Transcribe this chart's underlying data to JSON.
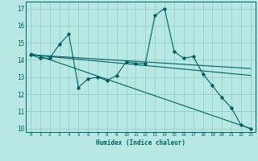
{
  "xlabel": "Humidex (Indice chaleur)",
  "xlim": [
    -0.5,
    23.5
  ],
  "ylim": [
    9.8,
    17.4
  ],
  "yticks": [
    10,
    11,
    12,
    13,
    14,
    15,
    16,
    17
  ],
  "xticks": [
    0,
    1,
    2,
    3,
    4,
    5,
    6,
    7,
    8,
    9,
    10,
    11,
    12,
    13,
    14,
    15,
    16,
    17,
    18,
    19,
    20,
    21,
    22,
    23
  ],
  "bg_color": "#b8e8e4",
  "grid_color": "#90c8c4",
  "line_color": "#006060",
  "line1_x": [
    0,
    1,
    2,
    3,
    4,
    5,
    6,
    7,
    8,
    9,
    10,
    11,
    12,
    13,
    14,
    15,
    16,
    17,
    18,
    19,
    20,
    21,
    22,
    23
  ],
  "line1_y": [
    14.3,
    14.1,
    14.1,
    14.9,
    15.5,
    12.4,
    12.9,
    13.0,
    12.8,
    13.1,
    13.9,
    13.8,
    13.8,
    16.6,
    17.0,
    14.5,
    14.1,
    14.2,
    13.2,
    12.5,
    11.8,
    11.2,
    10.2,
    10.0
  ],
  "line2_x": [
    0,
    23
  ],
  "line2_y": [
    14.3,
    13.5
  ],
  "line3_x": [
    0,
    23
  ],
  "line3_y": [
    14.3,
    13.1
  ],
  "line4_x": [
    0,
    23
  ],
  "line4_y": [
    14.4,
    10.0
  ]
}
